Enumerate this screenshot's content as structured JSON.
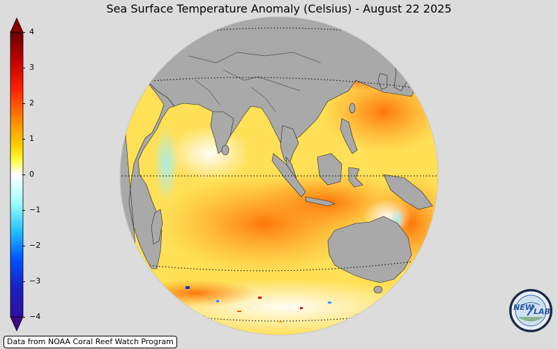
{
  "title": "Sea Surface Temperature Anomaly (Celsius) - August 22 2025",
  "credit": "Data from NOAA Coral Reef Watch Program",
  "colorbar": {
    "ticks": [
      "4",
      "3",
      "2",
      "1",
      "0",
      "−1",
      "−2",
      "−3",
      "−4"
    ],
    "stops": [
      "#6a0000",
      "#c00000",
      "#ff2000",
      "#ff8000",
      "#ffd000",
      "#ffff40",
      "#ffffff",
      "#a0ffff",
      "#20c0ff",
      "#0050ff",
      "#3010a0"
    ]
  },
  "logo": {
    "text_left": "NEW",
    "text_right": "LAB"
  },
  "colors": {
    "background": "#dcdcdc",
    "land": "#a9a9a9",
    "ocean_warm": "#ffd84a",
    "ocean_hot": "#ff8a1a",
    "ocean_cool": "#bff5ff"
  }
}
